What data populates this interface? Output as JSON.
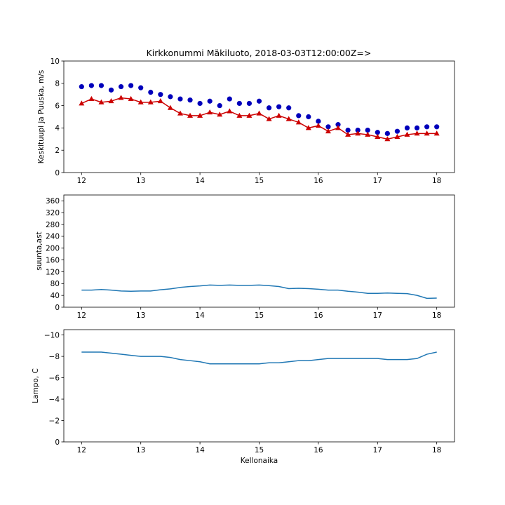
{
  "title": "Kirkkonummi Mäkiluoto, 2018-03-03T12:00:00Z=>",
  "colors": {
    "gust": "#0000bb",
    "wind": "#cc0000",
    "line": "#1f77b4",
    "axis": "#000000"
  },
  "chart_data": [
    {
      "type": "line",
      "ylabel": "Keskituupi ja Puuska, m/s",
      "xlabel": "",
      "xlim": [
        11.7,
        18.3
      ],
      "ylim": [
        0,
        10
      ],
      "xticks": [
        12,
        13,
        14,
        15,
        16,
        17,
        18
      ],
      "yticks": [
        0,
        2,
        4,
        6,
        8,
        10
      ],
      "x": [
        12.0,
        12.1667,
        12.3333,
        12.5,
        12.6667,
        12.8333,
        13.0,
        13.1667,
        13.3333,
        13.5,
        13.6667,
        13.8333,
        14.0,
        14.1667,
        14.3333,
        14.5,
        14.6667,
        14.8333,
        15.0,
        15.1667,
        15.3333,
        15.5,
        15.6667,
        15.8333,
        16.0,
        16.1667,
        16.3333,
        16.5,
        16.6667,
        16.8333,
        17.0,
        17.1667,
        17.3333,
        17.5,
        17.6667,
        17.8333,
        18.0
      ],
      "series": [
        {
          "key": "gust",
          "marker": "circle",
          "line": false,
          "values": [
            7.7,
            7.8,
            7.8,
            7.4,
            7.7,
            7.8,
            7.6,
            7.2,
            7.0,
            6.8,
            6.6,
            6.5,
            6.2,
            6.4,
            6.0,
            6.6,
            6.2,
            6.2,
            6.4,
            5.8,
            5.9,
            5.8,
            5.1,
            5.0,
            4.6,
            4.1,
            4.3,
            3.8,
            3.8,
            3.8,
            3.6,
            3.5,
            3.7,
            4.0,
            4.0,
            4.1,
            4.1
          ]
        },
        {
          "key": "wind",
          "marker": "triangle",
          "line": true,
          "values": [
            6.2,
            6.6,
            6.3,
            6.4,
            6.7,
            6.6,
            6.3,
            6.3,
            6.4,
            5.8,
            5.3,
            5.1,
            5.1,
            5.4,
            5.2,
            5.5,
            5.1,
            5.1,
            5.3,
            4.8,
            5.1,
            4.8,
            4.5,
            4.0,
            4.2,
            3.7,
            4.0,
            3.4,
            3.5,
            3.4,
            3.2,
            3.0,
            3.2,
            3.4,
            3.5,
            3.5,
            3.5
          ]
        }
      ]
    },
    {
      "type": "line",
      "ylabel": "suunta,ast",
      "xlabel": "",
      "xlim": [
        11.7,
        18.3
      ],
      "ylim": [
        0,
        380
      ],
      "xticks": [
        12,
        13,
        14,
        15,
        16,
        17,
        18
      ],
      "yticks": [
        0,
        40,
        80,
        120,
        160,
        200,
        240,
        280,
        320,
        360
      ],
      "x": [
        12.0,
        12.1667,
        12.3333,
        12.5,
        12.6667,
        12.8333,
        13.0,
        13.1667,
        13.3333,
        13.5,
        13.6667,
        13.8333,
        14.0,
        14.1667,
        14.3333,
        14.5,
        14.6667,
        14.8333,
        15.0,
        15.1667,
        15.3333,
        15.5,
        15.6667,
        15.8333,
        16.0,
        16.1667,
        16.3333,
        16.5,
        16.6667,
        16.8333,
        17.0,
        17.1667,
        17.3333,
        17.5,
        17.6667,
        17.8333,
        18.0
      ],
      "series": [
        {
          "key": "line",
          "marker": "none",
          "line": true,
          "values": [
            58,
            58,
            60,
            58,
            55,
            54,
            55,
            55,
            59,
            62,
            67,
            70,
            72,
            75,
            74,
            75,
            74,
            74,
            75,
            73,
            70,
            63,
            64,
            63,
            61,
            58,
            58,
            54,
            51,
            47,
            47,
            48,
            47,
            46,
            40,
            30,
            31
          ]
        }
      ]
    },
    {
      "type": "line",
      "ylabel": "Lampo, C",
      "xlabel": "Kellonaika",
      "xlim": [
        11.7,
        18.3
      ],
      "ylim": [
        0,
        -10.5
      ],
      "inverted_y": true,
      "xticks": [
        12,
        13,
        14,
        15,
        16,
        17,
        18
      ],
      "yticks": [
        0,
        -2,
        -4,
        -6,
        -8,
        -10
      ],
      "x": [
        12.0,
        12.1667,
        12.3333,
        12.5,
        12.6667,
        12.8333,
        13.0,
        13.1667,
        13.3333,
        13.5,
        13.6667,
        13.8333,
        14.0,
        14.1667,
        14.3333,
        14.5,
        14.6667,
        14.8333,
        15.0,
        15.1667,
        15.3333,
        15.5,
        15.6667,
        15.8333,
        16.0,
        16.1667,
        16.3333,
        16.5,
        16.6667,
        16.8333,
        17.0,
        17.1667,
        17.3333,
        17.5,
        17.6667,
        17.8333,
        18.0
      ],
      "series": [
        {
          "key": "line",
          "marker": "none",
          "line": true,
          "values": [
            -8.4,
            -8.4,
            -8.4,
            -8.3,
            -8.2,
            -8.1,
            -8.0,
            -8.0,
            -8.0,
            -7.9,
            -7.7,
            -7.6,
            -7.5,
            -7.3,
            -7.3,
            -7.3,
            -7.3,
            -7.3,
            -7.3,
            -7.4,
            -7.4,
            -7.5,
            -7.6,
            -7.6,
            -7.7,
            -7.8,
            -7.8,
            -7.8,
            -7.8,
            -7.8,
            -7.8,
            -7.7,
            -7.7,
            -7.7,
            -7.8,
            -8.2,
            -8.4
          ]
        }
      ]
    }
  ]
}
